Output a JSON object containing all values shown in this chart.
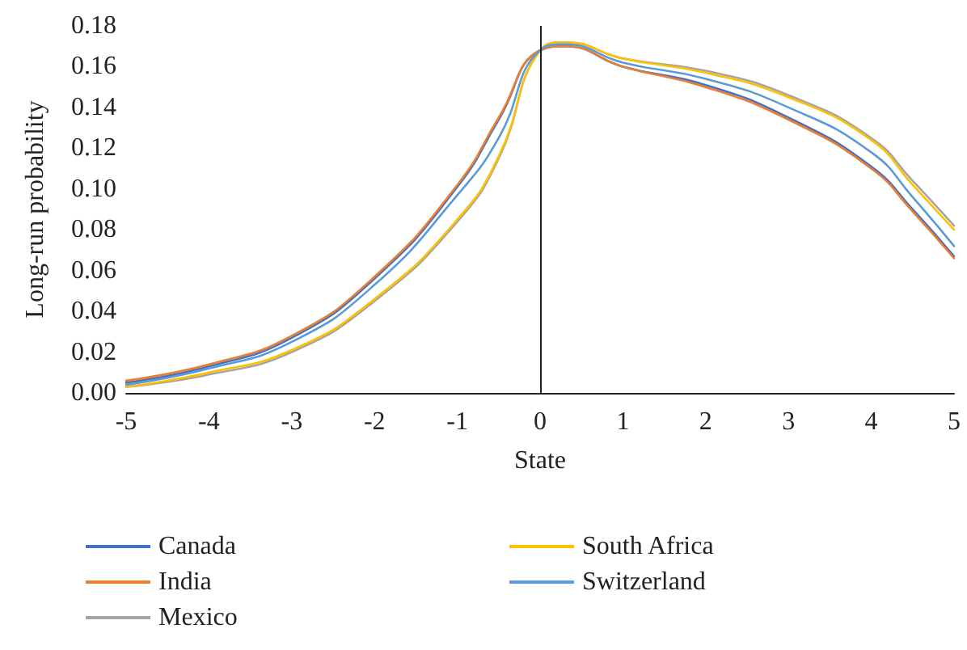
{
  "chart_data": {
    "type": "line",
    "xlabel": "State",
    "ylabel": "Long-run probability",
    "x": [
      -5,
      -4,
      -3,
      -2,
      -1,
      -0.5,
      0,
      0.3,
      1,
      2,
      3,
      4,
      4.5,
      5
    ],
    "series": [
      {
        "name": "Canada",
        "color": "#4472c4",
        "values": [
          0.005,
          0.013,
          0.027,
          0.056,
          0.101,
          0.134,
          0.168,
          0.17,
          0.16,
          0.151,
          0.135,
          0.111,
          0.09,
          0.067
        ]
      },
      {
        "name": "India",
        "color": "#ed7d31",
        "values": [
          0.006,
          0.014,
          0.028,
          0.057,
          0.102,
          0.135,
          0.168,
          0.17,
          0.16,
          0.15,
          0.134,
          0.11,
          0.089,
          0.066
        ]
      },
      {
        "name": "Mexico",
        "color": "#a5a5a5",
        "values": [
          0.003,
          0.009,
          0.02,
          0.045,
          0.084,
          0.115,
          0.168,
          0.172,
          0.164,
          0.158,
          0.146,
          0.125,
          0.104,
          0.082
        ]
      },
      {
        "name": "South Africa",
        "color": "#ffc000",
        "values": [
          0.003,
          0.01,
          0.021,
          0.046,
          0.085,
          0.116,
          0.168,
          0.172,
          0.164,
          0.157,
          0.145,
          0.124,
          0.102,
          0.08
        ]
      },
      {
        "name": "Switzerland",
        "color": "#5b9bd5",
        "values": [
          0.004,
          0.012,
          0.025,
          0.053,
          0.097,
          0.125,
          0.168,
          0.171,
          0.162,
          0.154,
          0.14,
          0.118,
          0.096,
          0.072
        ]
      }
    ],
    "xlim": [
      -5,
      5
    ],
    "xticks": [
      -5,
      -4,
      -3,
      -2,
      -1,
      0,
      1,
      2,
      3,
      4,
      5
    ],
    "ylim": [
      0,
      0.18
    ],
    "yticks": [
      {
        "value": 0,
        "label": "0.00"
      },
      {
        "value": 0.02,
        "label": "0.02"
      },
      {
        "value": 0.04,
        "label": "0.04"
      },
      {
        "value": 0.06,
        "label": "0.06"
      },
      {
        "value": 0.08,
        "label": "0.08"
      },
      {
        "value": 0.1,
        "label": "0.10"
      },
      {
        "value": 0.12,
        "label": "0.12"
      },
      {
        "value": 0.14,
        "label": "0.14"
      },
      {
        "value": 0.16,
        "label": "0.16"
      },
      {
        "value": 0.18,
        "label": "0.18"
      }
    ],
    "ref_lines": [
      {
        "axis": "x",
        "value": 0,
        "color": "#222222"
      }
    ],
    "grid": false,
    "legend": "bottom",
    "marker": "none",
    "line_style": "solid"
  }
}
